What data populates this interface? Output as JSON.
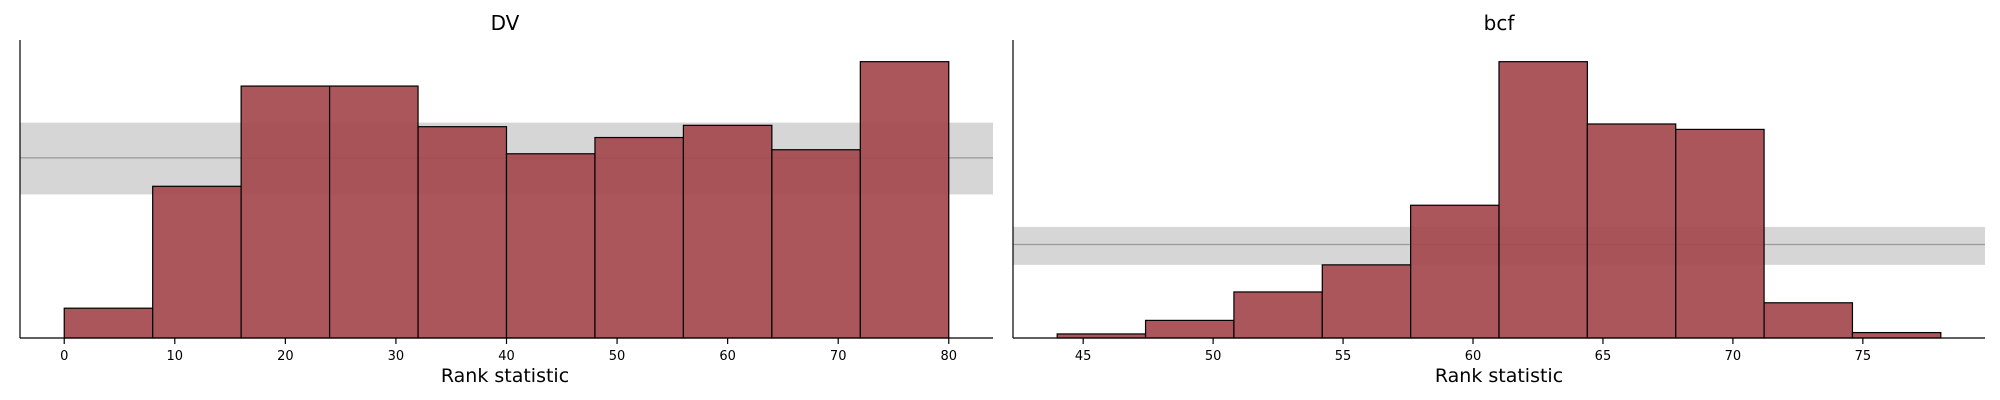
{
  "chart_data": [
    {
      "type": "bar",
      "title": "DV",
      "xlabel": "Rank statistic",
      "ylabel": "",
      "xlim": [
        -4,
        84
      ],
      "ylim": [
        0,
        1.1
      ],
      "xticks": [
        0,
        10,
        20,
        30,
        40,
        50,
        60,
        70,
        80
      ],
      "bins": [
        {
          "x0": 0,
          "x1": 8,
          "value": 0.11
        },
        {
          "x0": 8,
          "x1": 16,
          "value": 0.56
        },
        {
          "x0": 16,
          "x1": 24,
          "value": 0.93
        },
        {
          "x0": 24,
          "x1": 32,
          "value": 0.93
        },
        {
          "x0": 32,
          "x1": 40,
          "value": 0.78
        },
        {
          "x0": 40,
          "x1": 48,
          "value": 0.68
        },
        {
          "x0": 48,
          "x1": 56,
          "value": 0.74
        },
        {
          "x0": 56,
          "x1": 64,
          "value": 0.785
        },
        {
          "x0": 64,
          "x1": 72,
          "value": 0.695
        },
        {
          "x0": 72,
          "x1": 80,
          "value": 1.02
        }
      ],
      "uniform_band": {
        "low": 0.53,
        "center": 0.665,
        "high": 0.795
      },
      "grid": false,
      "colors": {
        "bar": "#a3484c",
        "band": "#d6d6d6",
        "band_line": "#9a9a9a"
      }
    },
    {
      "type": "bar",
      "title": "bcf",
      "xlabel": "Rank statistic",
      "ylabel": "",
      "xlim": [
        42.3,
        79.7
      ],
      "ylim": [
        0,
        1.1
      ],
      "xticks": [
        45,
        50,
        55,
        60,
        65,
        70,
        75
      ],
      "bins": [
        {
          "x0": 44,
          "x1": 47.4,
          "value": 0.015
        },
        {
          "x0": 47.4,
          "x1": 50.8,
          "value": 0.065
        },
        {
          "x0": 50.8,
          "x1": 54.2,
          "value": 0.17
        },
        {
          "x0": 54.2,
          "x1": 57.6,
          "value": 0.27
        },
        {
          "x0": 57.6,
          "x1": 61.0,
          "value": 0.49
        },
        {
          "x0": 61.0,
          "x1": 64.4,
          "value": 1.02
        },
        {
          "x0": 64.4,
          "x1": 67.8,
          "value": 0.79
        },
        {
          "x0": 67.8,
          "x1": 71.2,
          "value": 0.77
        },
        {
          "x0": 71.2,
          "x1": 74.6,
          "value": 0.13
        },
        {
          "x0": 74.6,
          "x1": 78.0,
          "value": 0.02
        }
      ],
      "uniform_band": {
        "low": 0.27,
        "center": 0.345,
        "high": 0.41
      },
      "grid": false,
      "colors": {
        "bar": "#a3484c",
        "band": "#d6d6d6",
        "band_line": "#9a9a9a"
      }
    }
  ]
}
